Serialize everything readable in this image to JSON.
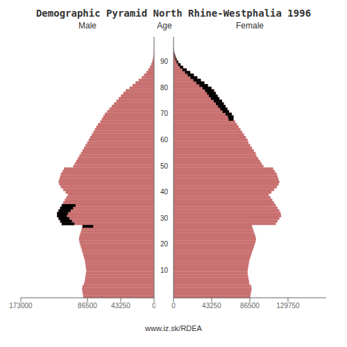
{
  "chart_data": [
    {
      "type": "bar",
      "orientation": "horizontal",
      "title": "Demographic Pyramid North Rhine-Westphalia 1996",
      "subtitle": "Male",
      "tick_labels": "x",
      "categories": [
        null,
        null,
        null,
        null,
        null,
        null,
        null,
        null,
        null,
        null,
        "10",
        null,
        null,
        null,
        null,
        null,
        null,
        null,
        null,
        null,
        "20",
        null,
        null,
        null,
        null,
        null,
        null,
        null,
        null,
        null,
        "30",
        null,
        null,
        null,
        null,
        null,
        null,
        null,
        null,
        null,
        "40",
        null,
        null,
        null,
        null,
        null,
        null,
        null,
        null,
        null,
        "50",
        null,
        null,
        null,
        null,
        null,
        null,
        null,
        null,
        null,
        "60",
        null,
        null,
        null,
        null,
        null,
        null,
        null,
        null,
        null,
        "70",
        null,
        null,
        null,
        null,
        null,
        null,
        null,
        null,
        null,
        "80",
        null,
        null,
        null,
        null,
        null,
        null,
        null,
        null,
        null,
        "90",
        null,
        null,
        null,
        null,
        null,
        null,
        null,
        null,
        null
      ],
      "xlim": [
        173000,
        0
      ],
      "xticks": [
        173000,
        86500,
        43250,
        0
      ],
      "series": [
        {
          "color": "#C97070",
          "values": [
            92000,
            92500,
            93000,
            93500,
            93000,
            91000,
            90000,
            89500,
            89000,
            88500,
            88000,
            88500,
            89000,
            89500,
            90000,
            91000,
            92000,
            93000,
            94000,
            95000,
            96000,
            97000,
            97500,
            97000,
            96000,
            95000,
            94000,
            93000,
            120000,
            122000,
            124000,
            126000,
            126000,
            124000,
            122000,
            120000,
            118000,
            116000,
            114000,
            112000,
            115000,
            118000,
            121000,
            123000,
            124000,
            123000,
            122000,
            121000,
            119000,
            117000,
            105000,
            103000,
            101000,
            99000,
            97000,
            95000,
            93000,
            91000,
            89000,
            87000,
            85000,
            83000,
            81000,
            79000,
            77000,
            75000,
            73000,
            70000,
            68000,
            66000,
            64000,
            61000,
            58000,
            55000,
            52000,
            49000,
            46000,
            43000,
            40000,
            37000,
            32000,
            28000,
            24000,
            20000,
            16000,
            13000,
            10000,
            7500,
            5500,
            3800,
            2500,
            1600,
            1000,
            600,
            350,
            180,
            90,
            45,
            20,
            8
          ]
        },
        {
          "color": "#000000",
          "values": [
            null,
            null,
            null,
            null,
            null,
            null,
            null,
            null,
            null,
            null,
            null,
            null,
            null,
            null,
            null,
            null,
            null,
            null,
            null,
            null,
            null,
            null,
            null,
            null,
            null,
            null,
            null,
            13950,
            16500,
            15250,
            13950,
            12600,
            14175,
            15500,
            16775,
            18000,
            null,
            null,
            null,
            null,
            null,
            null,
            null,
            null,
            null,
            null,
            null,
            null,
            null,
            null,
            null,
            null,
            null,
            null,
            null,
            null,
            null,
            null,
            null,
            null,
            null,
            null,
            null,
            null,
            null,
            null,
            null,
            null,
            null,
            null,
            null,
            null,
            null,
            null,
            null,
            null,
            null,
            null,
            null,
            null,
            null,
            null,
            null,
            null,
            null,
            null,
            null,
            null,
            null,
            null,
            null,
            null,
            null,
            null,
            null,
            null,
            null,
            null,
            null,
            null
          ]
        }
      ]
    },
    {
      "type": "bar",
      "orientation": "horizontal",
      "subtitle": "Female",
      "ylabel": "Age",
      "annotations": [
        "www.iz.sk/RDEA"
      ],
      "categories": [
        null,
        null,
        null,
        null,
        null,
        null,
        null,
        null,
        null,
        null,
        "10",
        null,
        null,
        null,
        null,
        null,
        null,
        null,
        null,
        null,
        "20",
        null,
        null,
        null,
        null,
        null,
        null,
        null,
        null,
        null,
        "30",
        null,
        null,
        null,
        null,
        null,
        null,
        null,
        null,
        null,
        "40",
        null,
        null,
        null,
        null,
        null,
        null,
        null,
        null,
        null,
        "50",
        null,
        null,
        null,
        null,
        null,
        null,
        null,
        null,
        null,
        "60",
        null,
        null,
        null,
        null,
        null,
        null,
        null,
        null,
        null,
        "70",
        null,
        null,
        null,
        null,
        null,
        null,
        null,
        null,
        null,
        "80",
        null,
        null,
        null,
        null,
        null,
        null,
        null,
        null,
        null,
        "90",
        null,
        null,
        null,
        null,
        null,
        null,
        null,
        null,
        null
      ],
      "xlim": [
        0,
        173000
      ],
      "xticks": [
        0,
        43250,
        86500,
        129750
      ],
      "series": [
        {
          "color": "#C97070",
          "values": [
            87000,
            87500,
            88000,
            88500,
            88000,
            86000,
            85500,
            85000,
            84500,
            84000,
            84000,
            84500,
            85000,
            85500,
            86000,
            87000,
            88000,
            89000,
            90000,
            91000,
            92000,
            93000,
            93500,
            93000,
            92000,
            91000,
            90000,
            89000,
            116000,
            118000,
            120000,
            122000,
            121500,
            120000,
            118000,
            116000,
            114000,
            112000,
            110000,
            108000,
            111000,
            114000,
            117000,
            119000,
            120000,
            119000,
            118000,
            117000,
            115000,
            113000,
            102000,
            100000,
            98000,
            96000,
            94000,
            93000,
            91000,
            89000,
            87000,
            85000,
            84000,
            82000,
            80000,
            78000,
            76000,
            74000,
            72000,
            70000,
            68000,
            68000,
            66000,
            63000,
            61000,
            59000,
            57000,
            55000,
            52000,
            50000,
            48000,
            46000,
            43000,
            39000,
            35000,
            31000,
            27000,
            23000,
            19000,
            15000,
            11000,
            8000,
            5500,
            3500,
            2200,
            1300,
            700,
            350,
            180,
            85,
            40,
            18
          ]
        },
        {
          "color": "#000000",
          "values": [
            null,
            null,
            null,
            null,
            null,
            null,
            null,
            null,
            null,
            null,
            null,
            null,
            null,
            null,
            null,
            null,
            null,
            null,
            null,
            null,
            null,
            null,
            null,
            null,
            null,
            null,
            null,
            null,
            null,
            null,
            null,
            null,
            null,
            null,
            null,
            null,
            null,
            null,
            null,
            null,
            null,
            null,
            null,
            null,
            null,
            null,
            null,
            null,
            null,
            null,
            null,
            null,
            null,
            null,
            null,
            null,
            null,
            null,
            null,
            null,
            null,
            null,
            null,
            null,
            null,
            null,
            null,
            null,
            5440,
            6321.4815,
            6991.1111,
            7490,
            8042.963,
            8544.0741,
            8993.3333,
            9390.7407,
            9552.5926,
            9833.3333,
            10062.2222,
            10239.2593,
            10128.8889,
            9692.2222,
            9151.8519,
            8507.7778,
            7760,
            6908.5185,
            5953.3333,
            4894.4444,
            3731.8519,
            2817.7778,
            2008.5185,
            1323.5185,
            860.4444,
            525.2963,
            291.9259,
            150.5,
            null,
            null,
            null,
            null
          ]
        }
      ]
    }
  ]
}
